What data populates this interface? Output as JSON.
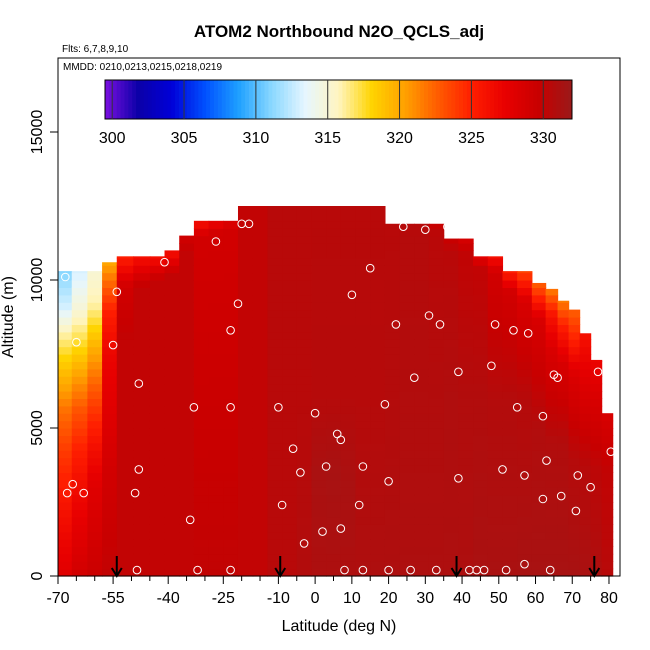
{
  "chart_data": {
    "type": "heatmap",
    "title": "ATOM2 Northbound N2O_QCLS_adj",
    "flights_note": "Flts: 6,7,8,9,10",
    "dates_note": "MMDD: 0210,0213,0215,0218,0219",
    "xlabel": "Latitude (deg N)",
    "ylabel": "Altitude (m)",
    "xlim": [
      -70,
      83
    ],
    "ylim": [
      0,
      17500
    ],
    "x_ticks": [
      -70,
      -55,
      -40,
      -25,
      -10,
      0,
      10,
      20,
      30,
      40,
      50,
      60,
      70,
      80
    ],
    "x_tick_labels": [
      "-70",
      "-55",
      "-40",
      "-25",
      "-10",
      "0",
      "10",
      "20",
      "30",
      "40",
      "50",
      "60",
      "70",
      "80"
    ],
    "x_minor_ticks": [
      -65,
      -60,
      -50,
      -45,
      -35,
      -30,
      -20,
      -15,
      -5,
      5,
      15,
      25,
      35,
      45,
      55,
      65,
      75
    ],
    "y_ticks": [
      0,
      5000,
      10000,
      15000
    ],
    "y_tick_labels": [
      "0",
      "5000",
      "10000",
      "15000"
    ],
    "colorbar": {
      "min": 299.5,
      "max": 332,
      "ticks": [
        300,
        305,
        310,
        315,
        320,
        325,
        330
      ],
      "tick_labels": [
        "300",
        "305",
        "310",
        "315",
        "320",
        "325",
        "330"
      ],
      "colors": [
        "#7a0fe0",
        "#0b00a8",
        "#0000d8",
        "#0050ff",
        "#1ea0ff",
        "#8ad8ff",
        "#e6f6ff",
        "#fff5c0",
        "#ffd400",
        "#ffa000",
        "#ff5a00",
        "#ff1e00",
        "#e80000",
        "#c80000",
        "#9a1a1a"
      ]
    },
    "field_value_default": 330.3,
    "columns": [
      {
        "lat": -68.5,
        "top": 10300,
        "profile": [
          [
            0,
            328
          ],
          [
            2300,
            326
          ],
          [
            4200,
            324
          ],
          [
            5600,
            322
          ],
          [
            6500,
            320
          ],
          [
            7400,
            318
          ],
          [
            8200,
            316
          ],
          [
            9100,
            313
          ],
          [
            10300,
            311
          ]
        ]
      },
      {
        "lat": -64,
        "top": 10300,
        "profile": [
          [
            0,
            329
          ],
          [
            2500,
            327
          ],
          [
            4300,
            325
          ],
          [
            5600,
            323
          ],
          [
            6500,
            321
          ],
          [
            7300,
            319
          ],
          [
            8100,
            317
          ],
          [
            9000,
            315
          ],
          [
            10300,
            313
          ]
        ]
      },
      {
        "lat": -60,
        "top": 10300,
        "profile": [
          [
            0,
            329.5
          ],
          [
            3000,
            328
          ],
          [
            4500,
            326
          ],
          [
            5700,
            324
          ],
          [
            6700,
            322
          ],
          [
            7600,
            320
          ],
          [
            8400,
            318
          ],
          [
            9200,
            316
          ],
          [
            10300,
            315
          ]
        ]
      },
      {
        "lat": -56,
        "top": 10600,
        "profile": [
          [
            0,
            330
          ],
          [
            3500,
            329
          ],
          [
            5500,
            328
          ],
          [
            7500,
            327
          ],
          [
            9000,
            325
          ],
          [
            10000,
            322
          ],
          [
            10600,
            320
          ]
        ]
      },
      {
        "lat": -52,
        "top": 10800,
        "profile": [
          [
            0,
            330
          ],
          [
            8000,
            330
          ],
          [
            9800,
            329
          ],
          [
            10300,
            327
          ],
          [
            10800,
            325
          ]
        ]
      },
      {
        "lat": -47,
        "top": 10800,
        "profile": [
          [
            0,
            330
          ],
          [
            9800,
            330
          ],
          [
            10300,
            328
          ],
          [
            10800,
            326
          ]
        ]
      },
      {
        "lat": -43,
        "top": 10800,
        "profile": [
          [
            0,
            330
          ],
          [
            10000,
            330
          ],
          [
            10400,
            328
          ],
          [
            10800,
            326
          ]
        ]
      },
      {
        "lat": -39,
        "top": 11000,
        "profile": [
          [
            0,
            330
          ],
          [
            10200,
            330
          ],
          [
            10600,
            328
          ],
          [
            11000,
            326
          ]
        ]
      },
      {
        "lat": -35,
        "top": 11500,
        "profile": [
          [
            0,
            330
          ],
          [
            11000,
            330
          ],
          [
            11500,
            329
          ]
        ]
      },
      {
        "lat": -31,
        "top": 12000,
        "profile": [
          [
            0,
            330
          ],
          [
            11500,
            329
          ],
          [
            12000,
            326
          ]
        ]
      },
      {
        "lat": -27,
        "top": 12000,
        "profile": [
          [
            0,
            330
          ],
          [
            11600,
            329
          ],
          [
            12000,
            327
          ]
        ]
      },
      {
        "lat": -23,
        "top": 12000,
        "profile": [
          [
            0,
            330
          ],
          [
            11700,
            329
          ],
          [
            12000,
            328
          ]
        ]
      },
      {
        "lat": -19,
        "top": 12500,
        "profile": [
          [
            0,
            330
          ],
          [
            12500,
            330
          ]
        ]
      },
      {
        "lat": -15,
        "top": 12500,
        "profile": [
          [
            0,
            330
          ],
          [
            12500,
            330
          ]
        ]
      },
      {
        "lat": -11,
        "top": 12500,
        "profile": [
          [
            0,
            330.5
          ],
          [
            12500,
            330.5
          ]
        ]
      },
      {
        "lat": -7,
        "top": 12500,
        "profile": [
          [
            0,
            330.5
          ],
          [
            12500,
            330.5
          ]
        ]
      },
      {
        "lat": -3,
        "top": 12500,
        "profile": [
          [
            0,
            330.8
          ],
          [
            6000,
            330.5
          ],
          [
            12500,
            330.5
          ]
        ]
      },
      {
        "lat": 1,
        "top": 12500,
        "profile": [
          [
            0,
            331
          ],
          [
            3500,
            331.2
          ],
          [
            6000,
            330.6
          ],
          [
            12500,
            330.5
          ]
        ]
      },
      {
        "lat": 5,
        "top": 12500,
        "profile": [
          [
            0,
            331
          ],
          [
            3500,
            331.3
          ],
          [
            6000,
            330.6
          ],
          [
            12500,
            330.5
          ]
        ]
      },
      {
        "lat": 9,
        "top": 12500,
        "profile": [
          [
            0,
            331
          ],
          [
            3000,
            331.2
          ],
          [
            6000,
            330.6
          ],
          [
            12500,
            330.5
          ]
        ]
      },
      {
        "lat": 13,
        "top": 12500,
        "profile": [
          [
            0,
            331
          ],
          [
            6000,
            330.6
          ],
          [
            12500,
            330.5
          ]
        ]
      },
      {
        "lat": 17,
        "top": 12500,
        "profile": [
          [
            0,
            331
          ],
          [
            6000,
            330.6
          ],
          [
            12500,
            330.5
          ]
        ]
      },
      {
        "lat": 21,
        "top": 11900,
        "profile": [
          [
            0,
            331
          ],
          [
            6000,
            330.7
          ],
          [
            11900,
            330.5
          ]
        ]
      },
      {
        "lat": 25,
        "top": 11900,
        "profile": [
          [
            0,
            331
          ],
          [
            6000,
            330.8
          ],
          [
            11900,
            330.6
          ]
        ]
      },
      {
        "lat": 29,
        "top": 11900,
        "profile": [
          [
            0,
            331
          ],
          [
            6000,
            330.8
          ],
          [
            11900,
            330.6
          ]
        ]
      },
      {
        "lat": 33,
        "top": 11900,
        "profile": [
          [
            0,
            331
          ],
          [
            6000,
            330.8
          ],
          [
            11600,
            330.4
          ],
          [
            11900,
            329.5
          ]
        ]
      },
      {
        "lat": 37,
        "top": 11400,
        "profile": [
          [
            0,
            331
          ],
          [
            6000,
            330.9
          ],
          [
            11000,
            330.4
          ],
          [
            11400,
            329.5
          ]
        ]
      },
      {
        "lat": 41,
        "top": 11400,
        "profile": [
          [
            0,
            331
          ],
          [
            6000,
            330.8
          ],
          [
            11000,
            330
          ],
          [
            11400,
            328.5
          ]
        ]
      },
      {
        "lat": 45,
        "top": 10800,
        "profile": [
          [
            0,
            331.2
          ],
          [
            6000,
            330.8
          ],
          [
            10400,
            330
          ],
          [
            10800,
            327.5
          ]
        ]
      },
      {
        "lat": 49,
        "top": 10800,
        "profile": [
          [
            0,
            331.2
          ],
          [
            6000,
            330.7
          ],
          [
            10300,
            329
          ],
          [
            10800,
            326
          ]
        ]
      },
      {
        "lat": 53,
        "top": 10300,
        "profile": [
          [
            0,
            331.2
          ],
          [
            6000,
            330.7
          ],
          [
            9600,
            329
          ],
          [
            10300,
            325
          ]
        ]
      },
      {
        "lat": 57,
        "top": 10300,
        "profile": [
          [
            0,
            331.3
          ],
          [
            6000,
            330.6
          ],
          [
            9300,
            328.5
          ],
          [
            10300,
            323.5
          ]
        ]
      },
      {
        "lat": 61,
        "top": 9900,
        "profile": [
          [
            0,
            331.3
          ],
          [
            5000,
            330.8
          ],
          [
            8700,
            328.5
          ],
          [
            9900,
            322.5
          ]
        ]
      },
      {
        "lat": 64.5,
        "top": 9700,
        "profile": [
          [
            0,
            331.3
          ],
          [
            4500,
            330.8
          ],
          [
            7600,
            328.5
          ],
          [
            8800,
            326
          ],
          [
            9700,
            321.5
          ]
        ]
      },
      {
        "lat": 67.5,
        "top": 9300,
        "profile": [
          [
            0,
            331.3
          ],
          [
            4500,
            330.8
          ],
          [
            7200,
            328.5
          ],
          [
            8500,
            325
          ],
          [
            9300,
            321.5
          ]
        ]
      },
      {
        "lat": 70.5,
        "top": 9000,
        "profile": [
          [
            0,
            331.3
          ],
          [
            4000,
            330.6
          ],
          [
            6800,
            328.3
          ],
          [
            8000,
            325
          ],
          [
            9000,
            322.5
          ]
        ]
      },
      {
        "lat": 73.5,
        "top": 8200,
        "profile": [
          [
            0,
            331.2
          ],
          [
            3800,
            330.5
          ],
          [
            6400,
            328.2
          ],
          [
            8200,
            326
          ]
        ]
      },
      {
        "lat": 76.5,
        "top": 7300,
        "profile": [
          [
            0,
            331
          ],
          [
            3600,
            330.3
          ],
          [
            6000,
            328.5
          ],
          [
            7300,
            327
          ]
        ]
      },
      {
        "lat": 79.5,
        "top": 5500,
        "profile": [
          [
            0,
            330.5
          ],
          [
            3600,
            330
          ],
          [
            5500,
            328.5
          ]
        ]
      }
    ],
    "observation_points": [
      [
        -68,
        10100
      ],
      [
        -65,
        7900
      ],
      [
        -67.5,
        2800
      ],
      [
        -66,
        3100
      ],
      [
        -63,
        2800
      ],
      [
        -55,
        7800
      ],
      [
        -54,
        9600
      ],
      [
        -49,
        2800
      ],
      [
        -48,
        3600
      ],
      [
        -48,
        6500
      ],
      [
        -48.5,
        200
      ],
      [
        -41,
        10600
      ],
      [
        -34,
        1900
      ],
      [
        -33,
        5700
      ],
      [
        -32,
        200
      ],
      [
        -27,
        11300
      ],
      [
        -23,
        8300
      ],
      [
        -23,
        5700
      ],
      [
        -23,
        200
      ],
      [
        -21,
        9200
      ],
      [
        -20,
        11900
      ],
      [
        -18,
        11900
      ],
      [
        -10,
        5700
      ],
      [
        -9,
        2400
      ],
      [
        -6,
        4300
      ],
      [
        -4,
        3500
      ],
      [
        -3,
        1100
      ],
      [
        0,
        5500
      ],
      [
        2,
        1500
      ],
      [
        3,
        3700
      ],
      [
        6,
        4800
      ],
      [
        7,
        1600
      ],
      [
        7,
        4600
      ],
      [
        8,
        200
      ],
      [
        10,
        9500
      ],
      [
        12,
        2400
      ],
      [
        13,
        3700
      ],
      [
        13,
        200
      ],
      [
        15,
        10400
      ],
      [
        19,
        5800
      ],
      [
        20,
        3200
      ],
      [
        20,
        200
      ],
      [
        22,
        8500
      ],
      [
        24,
        11800
      ],
      [
        26,
        200
      ],
      [
        27,
        6700
      ],
      [
        30,
        11700
      ],
      [
        31,
        8800
      ],
      [
        33,
        200
      ],
      [
        34,
        8500
      ],
      [
        36,
        11800
      ],
      [
        39,
        6900
      ],
      [
        39,
        3300
      ],
      [
        42,
        200
      ],
      [
        44,
        200
      ],
      [
        46,
        200
      ],
      [
        48,
        7100
      ],
      [
        49,
        8500
      ],
      [
        51,
        3600
      ],
      [
        52,
        200
      ],
      [
        54,
        8300
      ],
      [
        55,
        5700
      ],
      [
        57,
        3400
      ],
      [
        57,
        400
      ],
      [
        58,
        8200
      ],
      [
        62,
        2600
      ],
      [
        62,
        5400
      ],
      [
        63,
        3900
      ],
      [
        64,
        200
      ],
      [
        65,
        6800
      ],
      [
        66,
        6700
      ],
      [
        67,
        2700
      ],
      [
        71,
        2200
      ],
      [
        71.5,
        3400
      ],
      [
        75,
        3000
      ],
      [
        77,
        6900
      ],
      [
        80.5,
        4200
      ]
    ],
    "flight_markers": [
      -54,
      -9.5,
      38.5,
      76
    ]
  }
}
